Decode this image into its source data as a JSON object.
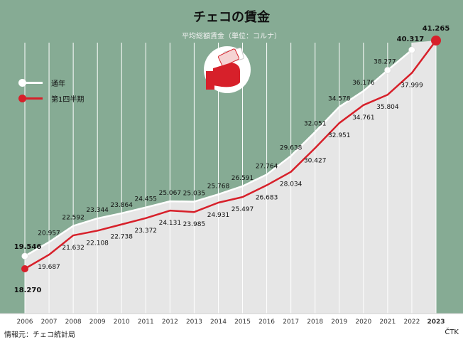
{
  "header": {
    "title": "チェコの賃金",
    "subtitle": "平均総額賃金（単位：コルナ）"
  },
  "colors": {
    "background_green": "#86ab94",
    "plot_gray": "#e6e6e6",
    "annual": "#ffffff",
    "q1": "#d7202a"
  },
  "icon": "hand-holding-money-icon",
  "footer": {
    "source": "情報元：チェコ統計局",
    "credit": "ČTK"
  },
  "chart_data": {
    "type": "line",
    "categories": [
      "2006",
      "2007",
      "2008",
      "2009",
      "2010",
      "2011",
      "2012",
      "2013",
      "2014",
      "2015",
      "2016",
      "2017",
      "2018",
      "2019",
      "2020",
      "2021",
      "2022",
      "2023"
    ],
    "series": [
      {
        "name": "通年",
        "color": "#ffffff",
        "values": [
          19546,
          20957,
          22592,
          23344,
          23864,
          24455,
          25067,
          25035,
          25768,
          26591,
          27764,
          29638,
          32051,
          34578,
          36176,
          38277,
          40317,
          null
        ],
        "labels": [
          "19.546",
          "20.957",
          "22.592",
          "23.344",
          "23.864",
          "24.455",
          "25.067",
          "25.035",
          "25.768",
          "26.591",
          "27.764",
          "29.638",
          "32.051",
          "34.578",
          "36.176",
          "38.277",
          "40.317",
          ""
        ]
      },
      {
        "name": "第1四半期",
        "color": "#d7202a",
        "values": [
          18270,
          19687,
          21632,
          22108,
          22738,
          23372,
          24131,
          23985,
          24931,
          25497,
          26683,
          28034,
          30427,
          32951,
          34761,
          35804,
          37999,
          41265
        ],
        "labels": [
          "18.270",
          "19.687",
          "21.632",
          "22.108",
          "22.738",
          "23.372",
          "24.131",
          "23.985",
          "24.931",
          "25.497",
          "26.683",
          "28.034",
          "30.427",
          "32.951",
          "34.761",
          "35.804",
          "37.999",
          "41.265"
        ]
      }
    ],
    "title": "チェコの賃金",
    "subtitle": "平均総額賃金（単位：コルナ）",
    "legend": "top-left"
  }
}
